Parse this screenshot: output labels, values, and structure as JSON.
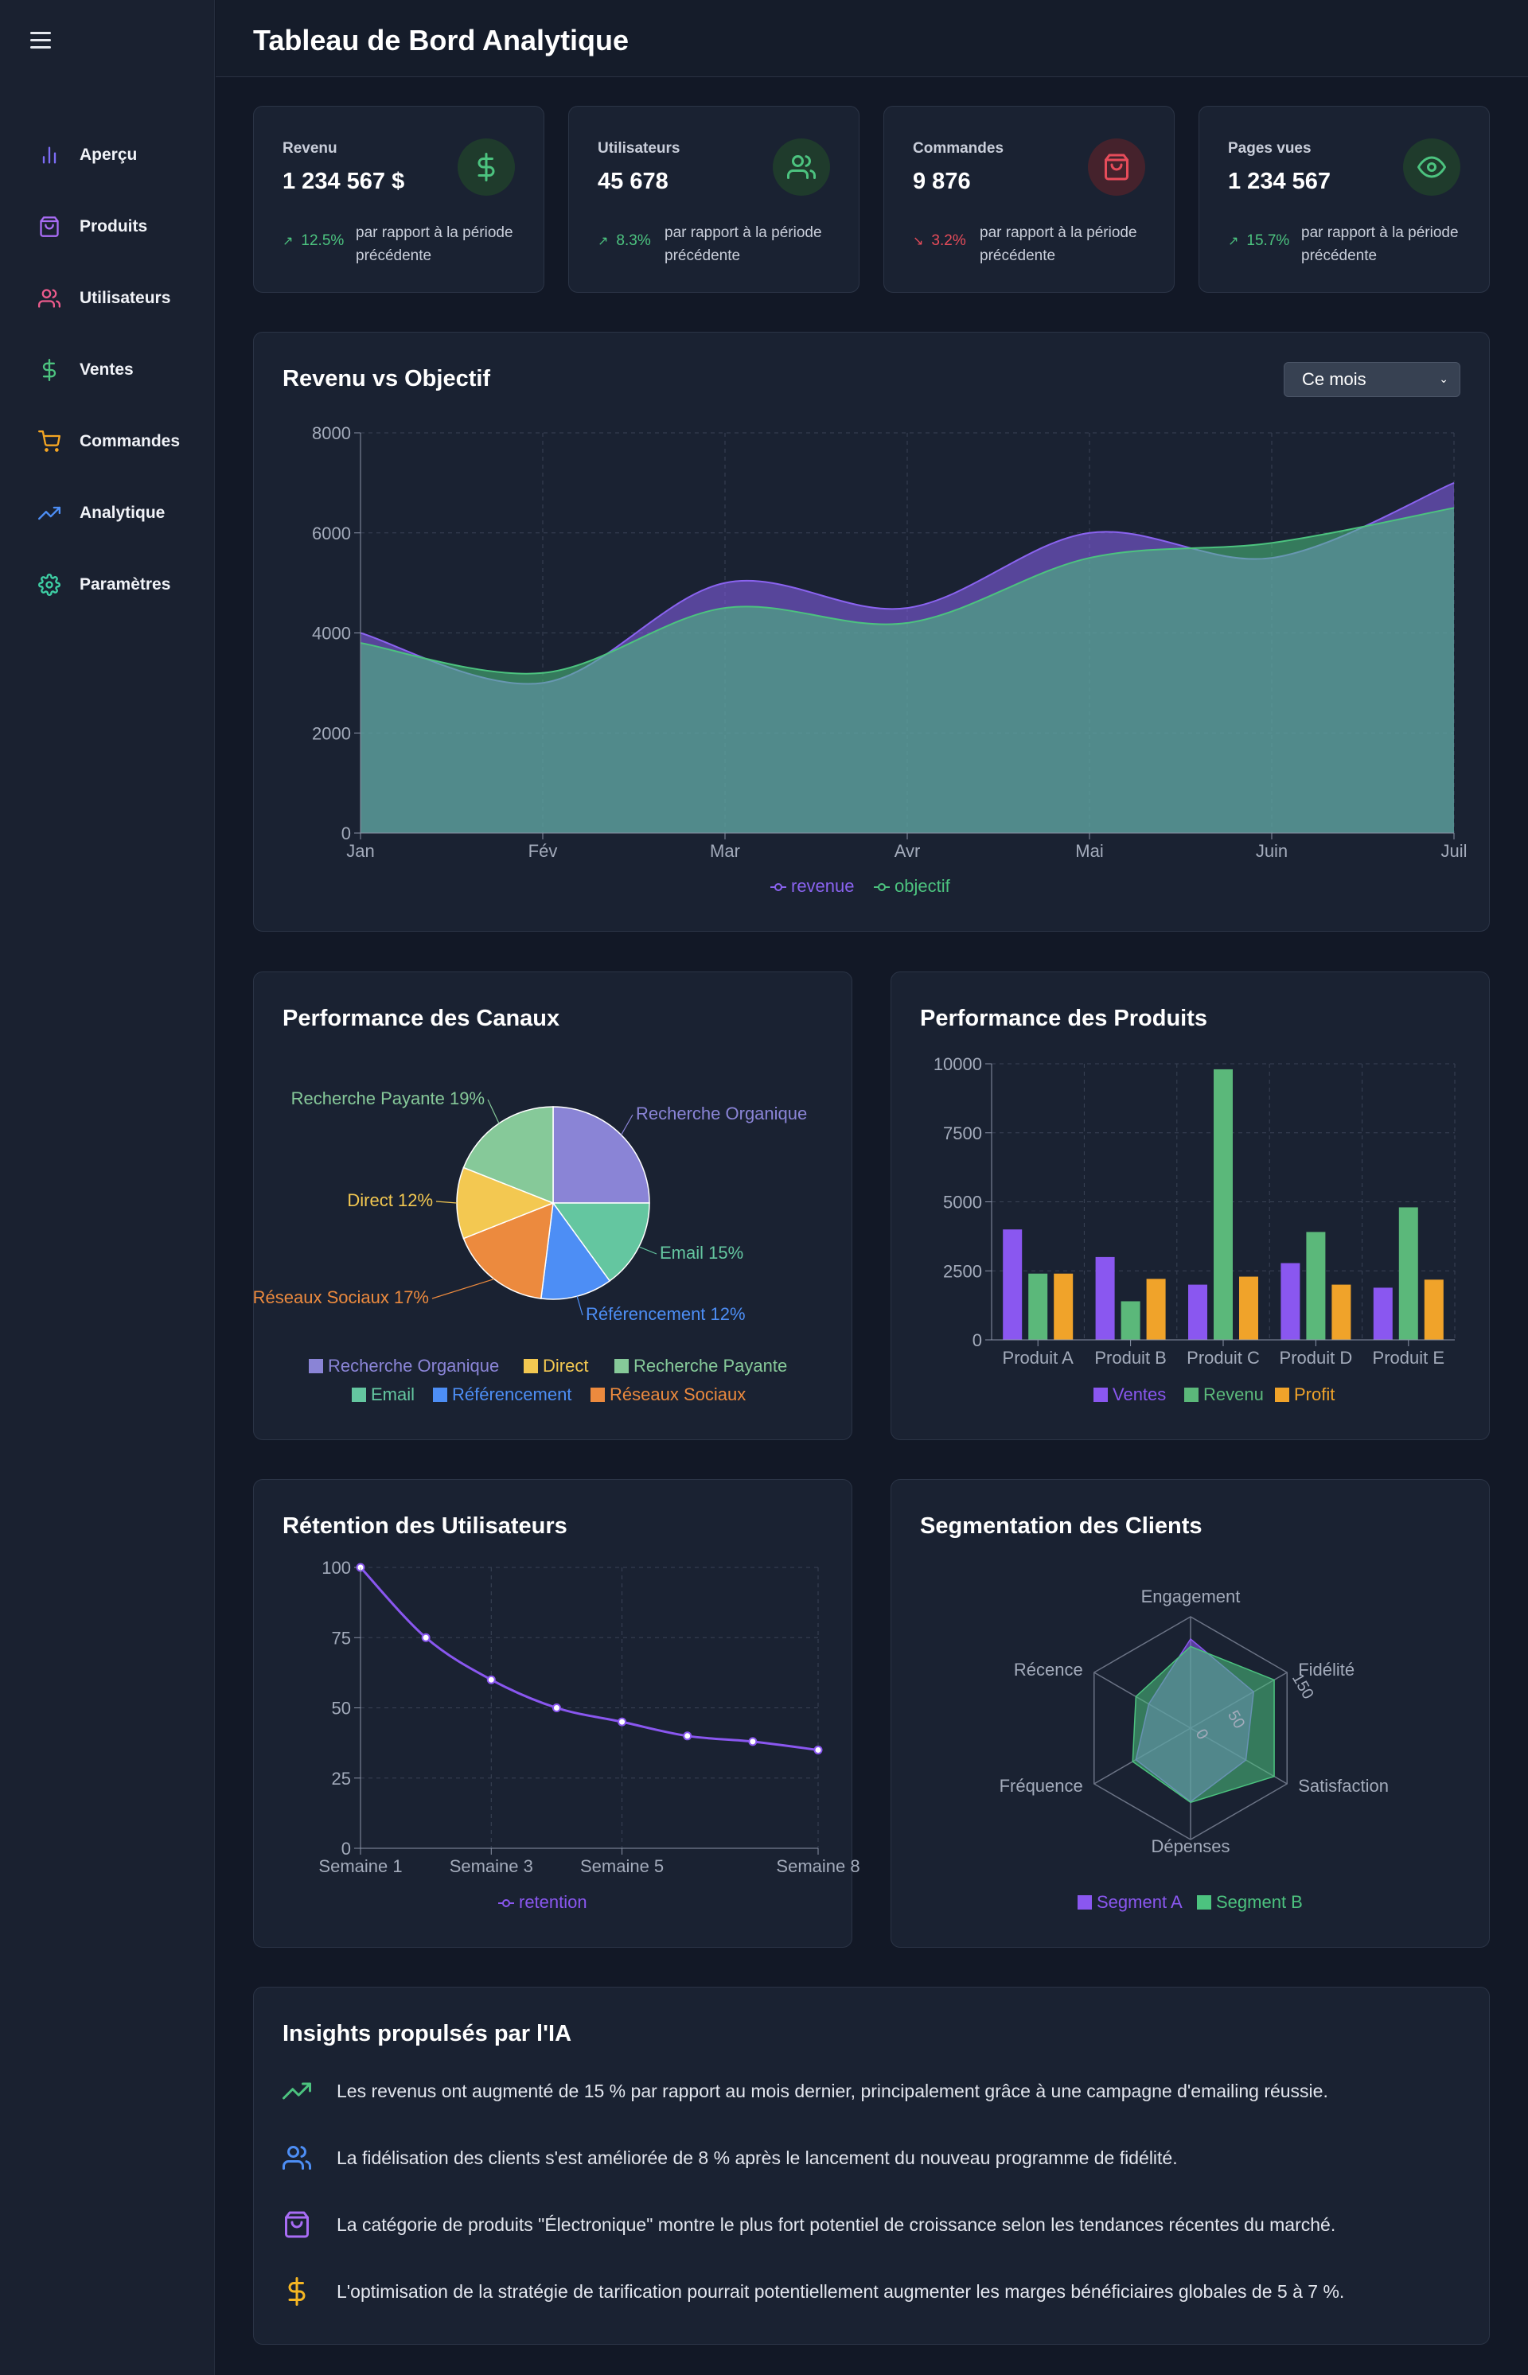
{
  "header": {
    "title": "Tableau de Bord Analytique"
  },
  "sidebar": {
    "items": [
      {
        "label": "Aperçu",
        "icon": "bar-chart-icon",
        "color": "#7c6cf5"
      },
      {
        "label": "Produits",
        "icon": "shopping-bag-icon",
        "color": "#a86cf5"
      },
      {
        "label": "Utilisateurs",
        "icon": "users-icon",
        "color": "#ec5b8c"
      },
      {
        "label": "Ventes",
        "icon": "dollar-icon",
        "color": "#4cc37f"
      },
      {
        "label": "Commandes",
        "icon": "shopping-cart-icon",
        "color": "#f5a623"
      },
      {
        "label": "Analytique",
        "icon": "trending-up-icon",
        "color": "#4d8ef5"
      },
      {
        "label": "Paramètres",
        "icon": "gear-icon",
        "color": "#3ed0a5"
      }
    ]
  },
  "kpis": [
    {
      "label": "Revenu",
      "value": "1 234 567 $",
      "change": "12.5%",
      "direction": "up",
      "note": "par rapport à la période précédente",
      "icon": "dollar-icon",
      "color": "#4cc37f"
    },
    {
      "label": "Utilisateurs",
      "value": "45 678",
      "change": "8.3%",
      "direction": "up",
      "note": "par rapport à la période précédente",
      "icon": "users-icon",
      "color": "#4cc37f"
    },
    {
      "label": "Commandes",
      "value": "9 876",
      "change": "3.2%",
      "direction": "down",
      "note": "par rapport à la période précédente",
      "icon": "shopping-bag-icon",
      "color": "#e74c5a"
    },
    {
      "label": "Pages vues",
      "value": "1 234 567",
      "change": "15.7%",
      "direction": "up",
      "note": "par rapport à la période précédente",
      "icon": "eye-icon",
      "color": "#4cc37f"
    }
  ],
  "revenue_card": {
    "title": "Revenu vs Objectif",
    "period_select": "Ce mois"
  },
  "channels_card": {
    "title": "Performance des Canaux"
  },
  "products_card": {
    "title": "Performance des Produits"
  },
  "retention_card": {
    "title": "Rétention des Utilisateurs"
  },
  "segmentation_card": {
    "title": "Segmentation des Clients"
  },
  "insights": {
    "title": "Insights propulsés par l'IA",
    "items": [
      {
        "icon": "trending-up-icon",
        "color": "#4cc37f",
        "text": "Les revenus ont augmenté de 15 % par rapport au mois dernier, principalement grâce à une campagne d'emailing réussie."
      },
      {
        "icon": "users-icon",
        "color": "#4d8ef5",
        "text": "La fidélisation des clients s'est améliorée de 8 % après le lancement du nouveau programme de fidélité."
      },
      {
        "icon": "shopping-bag-icon",
        "color": "#a86cf5",
        "text": "La catégorie de produits \"Électronique\" montre le plus fort potentiel de croissance selon les tendances récentes du marché."
      },
      {
        "icon": "dollar-icon",
        "color": "#f5b623",
        "text": "L'optimisation de la stratégie de tarification pourrait potentiellement augmenter les marges bénéficiaires globales de 5 à 7 %."
      }
    ]
  },
  "chart_data": [
    {
      "type": "area",
      "title": "Revenu vs Objectif",
      "x": [
        "Jan",
        "Fév",
        "Mar",
        "Avr",
        "Mai",
        "Juin",
        "Juil"
      ],
      "series": [
        {
          "name": "revenue",
          "values": [
            4000,
            3000,
            5000,
            4500,
            6000,
            5500,
            7000
          ],
          "color": "#8a63f0"
        },
        {
          "name": "objectif",
          "values": [
            3800,
            3200,
            4500,
            4200,
            5500,
            5800,
            6500
          ],
          "color": "#4cc37f"
        }
      ],
      "ylim": [
        0,
        8000
      ],
      "yticks": [
        0,
        2000,
        4000,
        6000,
        8000
      ],
      "grid": true,
      "legend": "bottom"
    },
    {
      "type": "pie",
      "title": "Performance des Canaux",
      "slices": [
        {
          "name": "Recherche Organique",
          "value": 25,
          "label": "Recherche Organique",
          "color": "#8a84d6"
        },
        {
          "name": "Email",
          "value": 15,
          "label": "Email 15%",
          "color": "#64c6a0"
        },
        {
          "name": "Référencement",
          "value": 12,
          "label": "Référencement 12%",
          "color": "#4d8ef5"
        },
        {
          "name": "Réseaux Sociaux",
          "value": 17,
          "label": "Réseaux Sociaux 17%",
          "color": "#ec8a3e"
        },
        {
          "name": "Direct",
          "value": 12,
          "label": "Direct 12%",
          "color": "#f3c851"
        },
        {
          "name": "Recherche Payante",
          "value": 19,
          "label": "Recherche Payante 19%",
          "color": "#86c999"
        }
      ],
      "legend": "bottom"
    },
    {
      "type": "bar",
      "title": "Performance des Produits",
      "categories": [
        "Produit A",
        "Produit B",
        "Produit C",
        "Produit D",
        "Produit E"
      ],
      "series": [
        {
          "name": "Ventes",
          "values": [
            4000,
            3000,
            2000,
            2780,
            1890
          ],
          "color": "#8a57f0"
        },
        {
          "name": "Revenu",
          "values": [
            2400,
            1398,
            9800,
            3908,
            4800
          ],
          "color": "#5bb87a"
        },
        {
          "name": "Profit",
          "values": [
            2400,
            2210,
            2290,
            2000,
            2181
          ],
          "color": "#f0a32a"
        }
      ],
      "ylim": [
        0,
        10000
      ],
      "yticks": [
        0,
        2500,
        5000,
        7500,
        10000
      ],
      "grid": true,
      "legend": "bottom"
    },
    {
      "type": "line",
      "title": "Rétention des Utilisateurs",
      "x": [
        "Semaine 1",
        "Semaine 2",
        "Semaine 3",
        "Semaine 4",
        "Semaine 5",
        "Semaine 6",
        "Semaine 7",
        "Semaine 8"
      ],
      "xtick_labels": [
        "Semaine 1",
        "Semaine 3",
        "Semaine 5",
        "Semaine 8"
      ],
      "series": [
        {
          "name": "retention",
          "values": [
            100,
            75,
            60,
            50,
            45,
            40,
            38,
            35
          ],
          "color": "#8a57f0"
        }
      ],
      "ylim": [
        0,
        100
      ],
      "yticks": [
        0,
        25,
        50,
        75,
        100
      ],
      "grid": true,
      "legend": "bottom"
    },
    {
      "type": "radar",
      "title": "Segmentation des Clients",
      "axes": [
        "Engagement",
        "Fidélité",
        "Satisfaction",
        "Dépenses",
        "Fréquence",
        "Récence"
      ],
      "series": [
        {
          "name": "Segment A",
          "values": [
            120,
            98,
            86,
            99,
            85,
            65
          ],
          "color": "#8a57f0"
        },
        {
          "name": "Segment B",
          "values": [
            110,
            130,
            130,
            100,
            90,
            85
          ],
          "color": "#4cc37f"
        }
      ],
      "rmax": 150,
      "rticks": [
        "0",
        "50",
        "150"
      ],
      "legend": "bottom"
    }
  ]
}
